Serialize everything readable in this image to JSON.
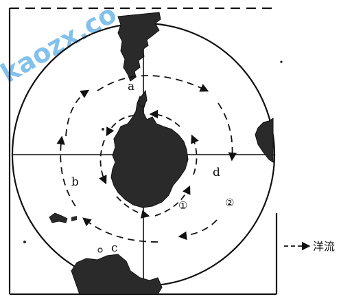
{
  "labels": {
    "a": "a",
    "b": "b",
    "c": "c",
    "d": "d",
    "one": "①",
    "two": "②"
  },
  "legend": {
    "text": "洋流"
  },
  "watermark": {
    "text": "kaozx.co"
  }
}
